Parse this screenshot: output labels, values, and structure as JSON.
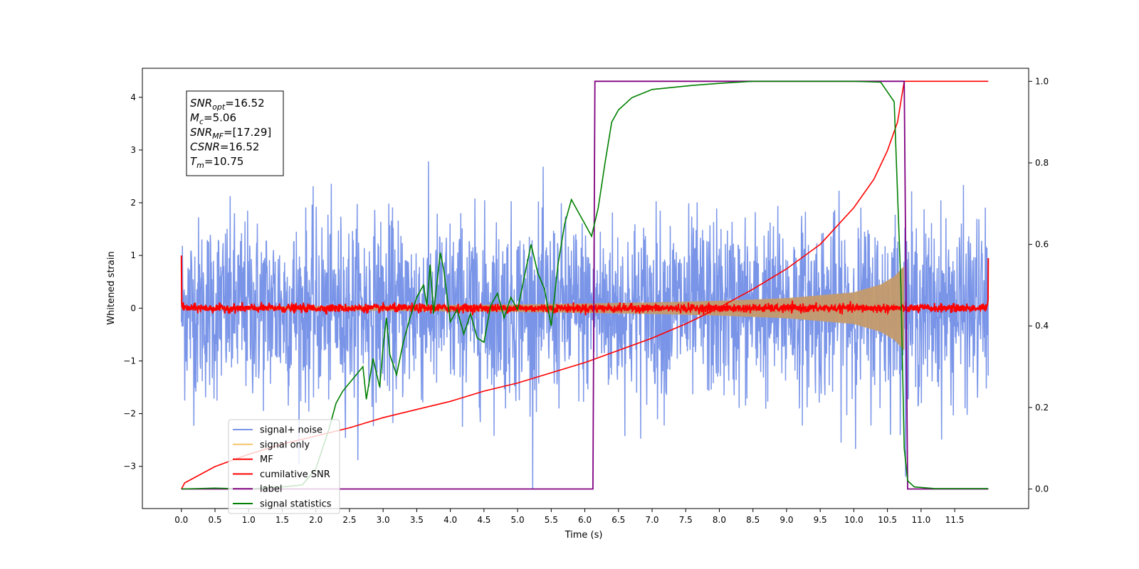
{
  "chart_data": {
    "type": "line",
    "xlabel": "Time (s)",
    "ylabel": "Whitened strain",
    "x_ticks": [
      "0.0",
      "0.5",
      "1.0",
      "1.5",
      "2.0",
      "2.5",
      "3.0",
      "3.5",
      "4.0",
      "4.5",
      "5.0",
      "5.5",
      "6.0",
      "6.5",
      "7.0",
      "7.5",
      "8.0",
      "8.5",
      "9.0",
      "9.5",
      "10.0",
      "10.5",
      "11.0",
      "11.5"
    ],
    "y_ticks": [
      "−3",
      "−2",
      "−1",
      "0",
      "1",
      "2",
      "3",
      "4"
    ],
    "y2_ticks": [
      "0.0",
      "0.2",
      "0.4",
      "0.6",
      "0.8",
      "1.0"
    ],
    "xlim": [
      -0.58,
      12.6
    ],
    "ylim": [
      -3.8,
      4.55
    ],
    "y2lim": [
      -0.048,
      1.032
    ],
    "grid": false,
    "legend_placement": "lower-left",
    "annotation": {
      "lines": [
        {
          "main": "SNR",
          "sub": "opt",
          "rest": "=16.52"
        },
        {
          "main": "M",
          "sub": "c",
          "rest": "=5.06"
        },
        {
          "main": "SNR",
          "sub": "MF",
          "rest": "=[17.29]"
        },
        {
          "main": "CSNR",
          "sub": "",
          "rest": "=16.52"
        },
        {
          "main": "T",
          "sub": "m",
          "rest": "=10.75"
        }
      ]
    },
    "series": [
      {
        "name": "signal+ noise",
        "color": "#6b89e6",
        "axis": "left",
        "kind": "noise",
        "x_range": [
          0,
          12
        ],
        "amplitude_sd": 0.85
      },
      {
        "name": "signal only",
        "color": "#f5c46a",
        "axis": "left",
        "kind": "chirp_envelope",
        "x": [
          0,
          1,
          2,
          3,
          4,
          5,
          6,
          7,
          8,
          9,
          10,
          10.4,
          10.6,
          10.75
        ],
        "values": [
          0.02,
          0.03,
          0.04,
          0.05,
          0.06,
          0.07,
          0.09,
          0.11,
          0.14,
          0.19,
          0.3,
          0.45,
          0.6,
          0.8
        ]
      },
      {
        "name": "MF",
        "color": "#ff0000",
        "axis": "left",
        "kind": "noise_small",
        "x_range": [
          0,
          12
        ],
        "amplitude_sd": 0.04,
        "edges": [
          1.0,
          0.95
        ]
      },
      {
        "name": "cumilative SNR",
        "color": "#ff0000",
        "axis": "right",
        "x": [
          0,
          0.05,
          0.5,
          1,
          1.5,
          2,
          2.5,
          3,
          3.5,
          4,
          4.5,
          5,
          5.5,
          6,
          6.5,
          7,
          7.5,
          8,
          8.5,
          9,
          9.5,
          10,
          10.3,
          10.5,
          10.65,
          10.75,
          12
        ],
        "values": [
          0,
          0.015,
          0.055,
          0.085,
          0.11,
          0.13,
          0.15,
          0.175,
          0.195,
          0.215,
          0.24,
          0.26,
          0.285,
          0.31,
          0.34,
          0.37,
          0.405,
          0.445,
          0.49,
          0.54,
          0.6,
          0.69,
          0.76,
          0.83,
          0.9,
          1.0,
          1.0
        ]
      },
      {
        "name": "label",
        "color": "#800080",
        "axis": "right",
        "x": [
          0,
          6.12,
          6.15,
          10.75,
          10.8,
          12
        ],
        "values": [
          0,
          0,
          1,
          1,
          0,
          0
        ]
      },
      {
        "name": "signal statistics",
        "color": "#008000",
        "axis": "right",
        "x": [
          0,
          0.5,
          1,
          1.5,
          1.8,
          2.0,
          2.1,
          2.2,
          2.3,
          2.4,
          2.5,
          2.6,
          2.7,
          2.75,
          2.85,
          2.95,
          3.0,
          3.05,
          3.1,
          3.2,
          3.3,
          3.4,
          3.5,
          3.6,
          3.65,
          3.7,
          3.75,
          3.85,
          3.9,
          4.0,
          4.1,
          4.2,
          4.3,
          4.4,
          4.5,
          4.6,
          4.7,
          4.8,
          4.9,
          5.0,
          5.1,
          5.2,
          5.3,
          5.4,
          5.5,
          5.6,
          5.7,
          5.8,
          5.9,
          6.0,
          6.1,
          6.2,
          6.3,
          6.4,
          6.5,
          6.7,
          7.0,
          7.3,
          7.6,
          8.0,
          8.5,
          9.0,
          9.5,
          10.0,
          10.4,
          10.6,
          10.7,
          10.75,
          10.8,
          10.9,
          11.2,
          12.0
        ],
        "values": [
          0,
          0.002,
          0.0,
          0.005,
          0.01,
          0.05,
          0.1,
          0.15,
          0.21,
          0.24,
          0.26,
          0.28,
          0.3,
          0.22,
          0.32,
          0.25,
          0.35,
          0.42,
          0.33,
          0.28,
          0.36,
          0.42,
          0.47,
          0.5,
          0.45,
          0.55,
          0.43,
          0.58,
          0.54,
          0.41,
          0.44,
          0.38,
          0.43,
          0.37,
          0.36,
          0.45,
          0.48,
          0.42,
          0.47,
          0.44,
          0.52,
          0.6,
          0.53,
          0.49,
          0.4,
          0.55,
          0.65,
          0.71,
          0.68,
          0.65,
          0.62,
          0.69,
          0.8,
          0.9,
          0.93,
          0.96,
          0.98,
          0.985,
          0.99,
          0.995,
          1.0,
          1.0,
          1.0,
          1.0,
          0.998,
          0.95,
          0.5,
          0.1,
          0.02,
          0.005,
          0.001,
          0.001
        ]
      }
    ]
  }
}
